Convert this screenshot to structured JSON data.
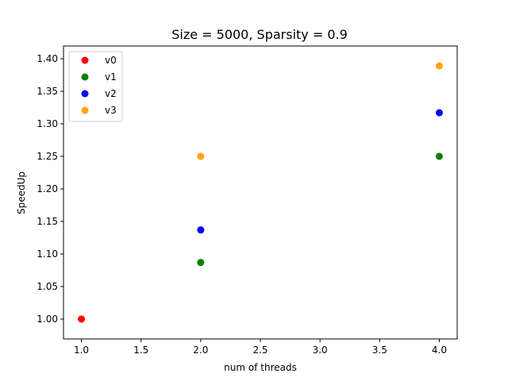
{
  "chart_data": {
    "type": "scatter",
    "title": "Size = 5000, Sparsity = 0.9",
    "xlabel": "num of threads",
    "ylabel": "SpeedUp",
    "xlim": [
      0.85,
      4.15
    ],
    "ylim": [
      0.9695,
      1.4195
    ],
    "xticks": [
      "1.0",
      "1.5",
      "2.0",
      "2.5",
      "3.0",
      "3.5",
      "4.0"
    ],
    "yticks": [
      "1.00",
      "1.05",
      "1.10",
      "1.15",
      "1.20",
      "1.25",
      "1.30",
      "1.35",
      "1.40"
    ],
    "grid": false,
    "legend_position": "top-left",
    "series": [
      {
        "name": "v0",
        "color": "#ff0000",
        "x": [
          1
        ],
        "y": [
          1.0
        ]
      },
      {
        "name": "v1",
        "color": "#008000",
        "x": [
          2,
          4
        ],
        "y": [
          1.087,
          1.25
        ]
      },
      {
        "name": "v2",
        "color": "#0000ff",
        "x": [
          2,
          4
        ],
        "y": [
          1.137,
          1.317
        ]
      },
      {
        "name": "v3",
        "color": "#ffa500",
        "x": [
          2,
          4
        ],
        "y": [
          1.25,
          1.389
        ]
      }
    ]
  }
}
